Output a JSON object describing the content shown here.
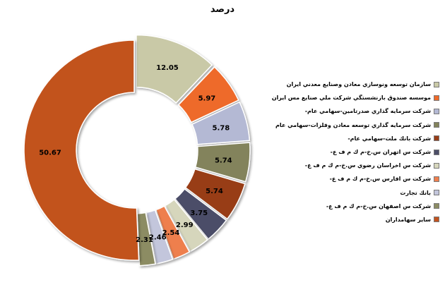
{
  "chart_data": {
    "type": "pie",
    "title": "درصد",
    "donut": true,
    "categories": [
      "سازمان توسعه ونوسازي معادن وصنايع معدني ايران",
      "موسسه صندوق بازنشستگي شركت ملي صنايع مس ايران",
      "شركت سرمايه گذاري صدرتامين-سهامي عام-",
      "شركت سرمايه گذاري توسعه معادن وفلزات-سهامي عام",
      "شركت بانك ملت-سهامي عام-",
      "شركت س اتهران س.خ-م ك م ف ع-",
      "شركت س اخراسان رضوي س.خ-م ك م ف ع-",
      "شركت س افارس س.خ-م ك م ف ع-",
      "بانك تجارت",
      "شركت س اصفهان س.خ-م ك م ف ع-",
      "ساير سهامداران"
    ],
    "values": [
      12.05,
      5.97,
      5.78,
      5.74,
      5.74,
      3.75,
      2.99,
      2.54,
      2.46,
      2.31,
      50.67
    ],
    "data_labels": [
      "12.05",
      "5.97",
      "5.78",
      "5.74",
      "5.74",
      "3.75",
      "2.99",
      "2.54",
      "2.46",
      "2.31",
      "50.67"
    ],
    "colors": [
      "#c9c9a7",
      "#ee6a2a",
      "#b4b9d4",
      "#83835b",
      "#983d18",
      "#4c4e68",
      "#d6d6bc",
      "#ee7f4e",
      "#c3c6dc",
      "#8c8c64",
      "#c2531f"
    ],
    "start_angle_deg": 0,
    "direction": "clockwise",
    "legend_position": "right"
  }
}
